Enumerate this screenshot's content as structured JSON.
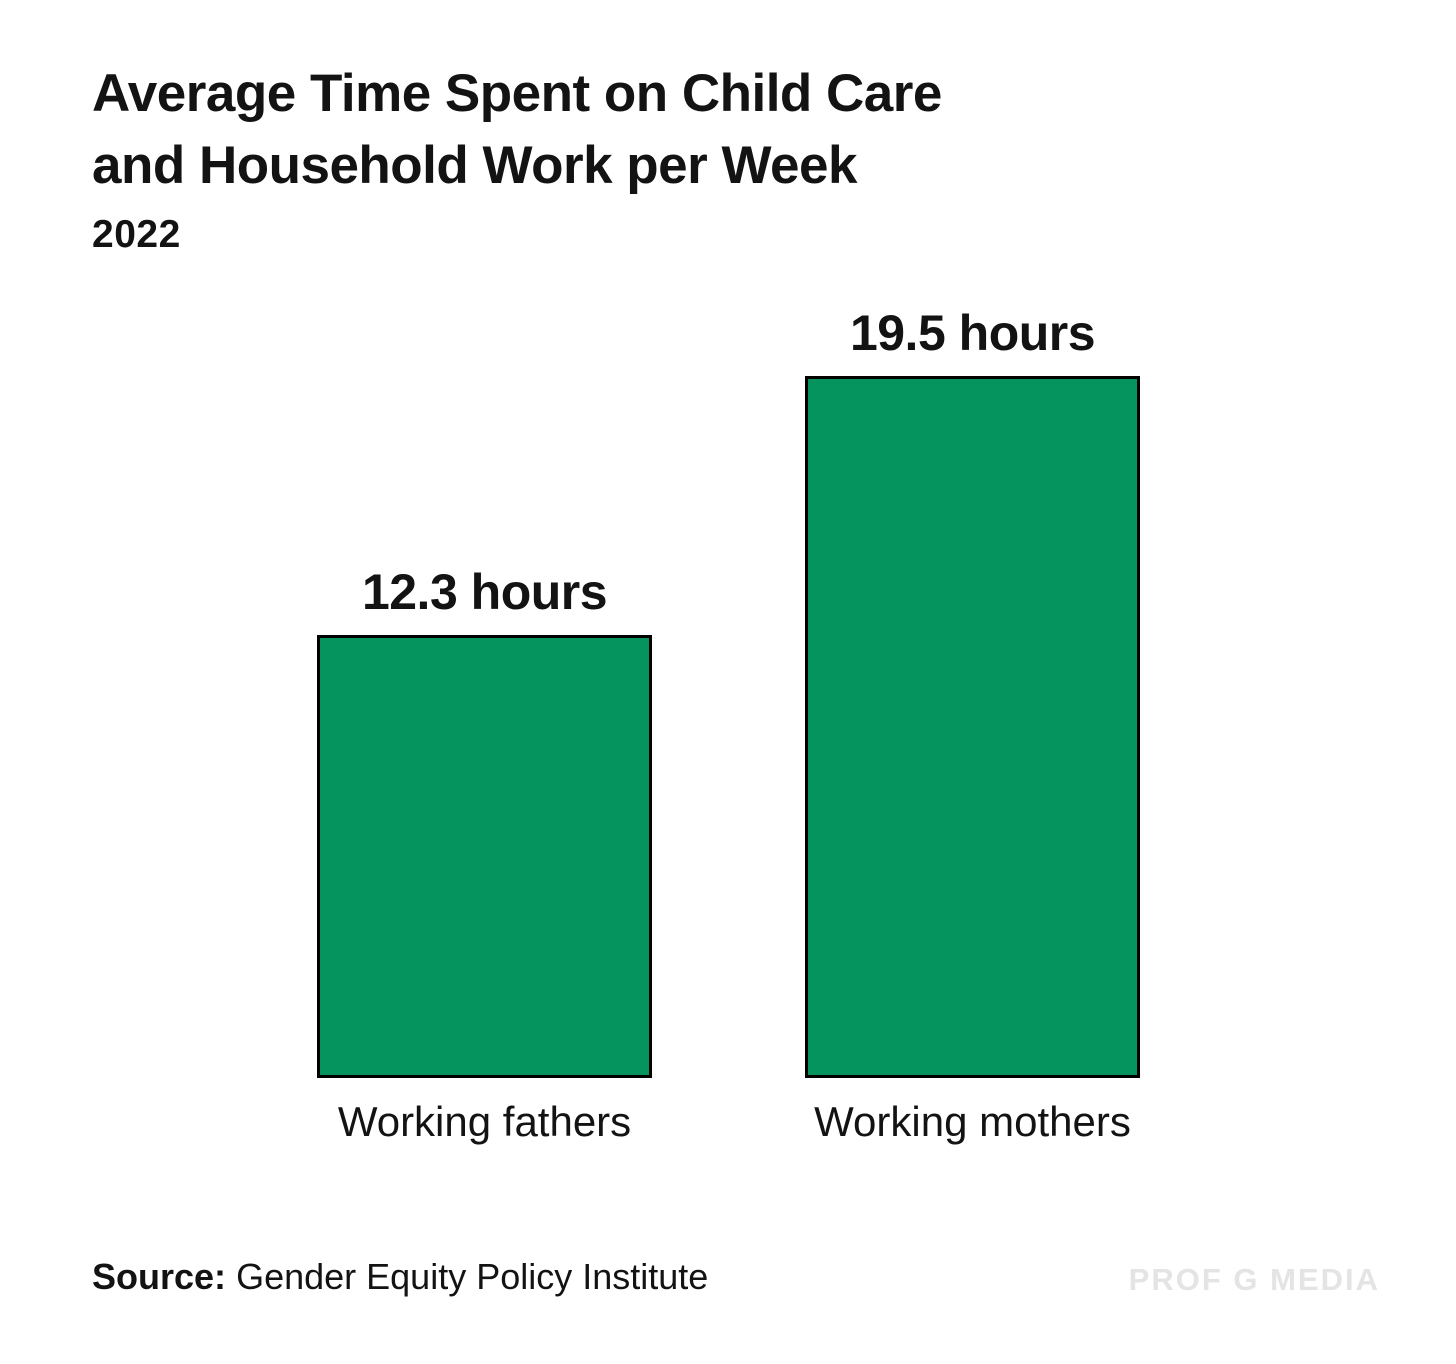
{
  "header": {
    "title_lines": [
      "Average Time Spent on Child Care",
      "and Household Work per Week"
    ],
    "subtitle": "2022"
  },
  "chart_data": {
    "type": "bar",
    "title": "Average Time Spent on Child Care and Household Work per Week",
    "subtitle": "2022",
    "categories": [
      "Working fathers",
      "Working mothers"
    ],
    "values": [
      12.3,
      19.5
    ],
    "value_labels": [
      "12.3 hours",
      "19.5 hours"
    ],
    "unit": "hours",
    "xlabel": "",
    "ylabel": "",
    "ylim": [
      0,
      19.5
    ],
    "grid": false,
    "legend": false,
    "data_labels_position": "above-bars",
    "bar_color": "#05935E",
    "bar_border_color": "#000000"
  },
  "footer": {
    "source_label": "Source:",
    "source_text": "Gender Equity Policy Institute",
    "watermark": "PROF G MEDIA"
  },
  "colors": {
    "background": "#ffffff",
    "text": "#131313",
    "bar_fill": "#05935E",
    "bar_border": "#000000",
    "watermark": "#e4e4e4"
  }
}
